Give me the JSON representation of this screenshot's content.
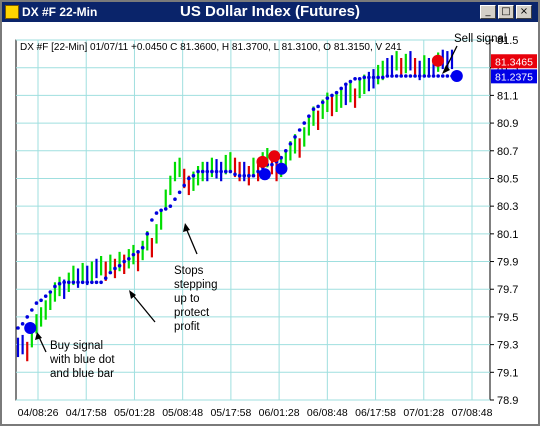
{
  "window": {
    "symbol_title": "DX #F 22-Min",
    "chart_title": "US Dollar Index (Futures)",
    "buttons": {
      "minimize": "_",
      "maximize": "□",
      "close": "×"
    }
  },
  "info_line": "DX #F [22-Min] 01/07/11  +0.0450  C 81.3600,  H 81.3700,  L 81.3100,  O 81.3150,  V 241",
  "price_tags": [
    {
      "label": "81.3465",
      "color": "#e8000b"
    },
    {
      "label": "81.2375",
      "color": "#0000e6"
    }
  ],
  "annotations": {
    "sell": "Sell signal",
    "buy": [
      "Buy signal",
      "with blue dot",
      "and blue bar"
    ],
    "stops": [
      "Stops",
      "stepping",
      "up to",
      "protect",
      "profit"
    ]
  },
  "colors": {
    "up": "#00dd00",
    "down": "#dd0000",
    "neutral": "#0000dd",
    "stop": "#0000dd",
    "grid": "#9fdfdf",
    "sell": "#e8000b",
    "buy": "#0000ee"
  },
  "chart_data": {
    "type": "line",
    "title": "US Dollar Index (Futures)",
    "ylim": [
      78.9,
      81.5
    ],
    "y_ticks": [
      "81.5",
      "81.3",
      "81.1",
      "80.9",
      "80.7",
      "80.5",
      "80.3",
      "80.1",
      "79.9",
      "79.7",
      "79.5",
      "79.3",
      "79.1",
      "78.9"
    ],
    "x_ticks": [
      "04/08:26",
      "04/17:58",
      "05/01:28",
      "05/08:48",
      "05/17:58",
      "06/01:28",
      "06/08:48",
      "06/17:58",
      "07/01:28",
      "07/08:48"
    ],
    "series": [
      {
        "kind": "price_bars",
        "values": [
          79.28,
          79.3,
          79.25,
          79.35,
          79.45,
          79.5,
          79.55,
          79.62,
          79.68,
          79.72,
          79.7,
          79.75,
          79.8,
          79.78,
          79.82,
          79.8,
          79.83,
          79.85,
          79.87,
          79.83,
          79.88,
          79.85,
          79.9,
          79.88,
          79.92,
          79.95,
          79.9,
          79.98,
          80.05,
          80.0,
          80.1,
          80.2,
          80.35,
          80.45,
          80.55,
          80.58,
          80.5,
          80.45,
          80.48,
          80.52,
          80.55,
          80.55,
          80.58,
          80.57,
          80.55,
          80.6,
          80.62,
          80.58,
          80.55,
          80.55,
          80.52,
          80.58,
          80.55,
          80.62,
          80.65,
          80.6,
          80.55,
          80.58,
          80.62,
          80.7,
          80.75,
          80.72,
          80.8,
          80.88,
          80.95,
          80.92,
          81.0,
          81.05,
          81.02,
          81.05,
          81.08,
          81.1,
          81.12,
          81.08,
          81.15,
          81.18,
          81.2,
          81.22,
          81.25,
          81.28,
          81.3,
          81.32,
          81.35,
          81.3,
          81.33,
          81.35,
          81.3,
          81.28,
          81.32,
          81.3,
          81.3,
          81.34,
          81.36,
          81.35,
          81.36
        ]
      },
      {
        "kind": "trailing_stop",
        "values": [
          79.42,
          79.45,
          79.5,
          79.55,
          79.6,
          79.62,
          79.65,
          79.68,
          79.72,
          79.74,
          79.75,
          79.75,
          79.75,
          79.75,
          79.75,
          79.75,
          79.75,
          79.75,
          79.75,
          79.78,
          79.82,
          79.85,
          79.87,
          79.9,
          79.92,
          79.95,
          79.97,
          80.0,
          80.1,
          80.2,
          80.25,
          80.27,
          80.28,
          80.3,
          80.35,
          80.4,
          80.45,
          80.5,
          80.52,
          80.55,
          80.55,
          80.55,
          80.55,
          80.55,
          80.55,
          80.55,
          80.55,
          80.53,
          80.52,
          80.52,
          80.52,
          80.52,
          80.55,
          80.58,
          80.6,
          80.6,
          80.62,
          80.65,
          80.7,
          80.75,
          80.8,
          80.85,
          80.9,
          80.95,
          81.0,
          81.02,
          81.05,
          81.08,
          81.1,
          81.12,
          81.15,
          81.18,
          81.2,
          81.22,
          81.22,
          81.23,
          81.23,
          81.23,
          81.23,
          81.23,
          81.24,
          81.24,
          81.24,
          81.24,
          81.24,
          81.24,
          81.24,
          81.24,
          81.24,
          81.24,
          81.24,
          81.24,
          81.24,
          81.24,
          81.24
        ]
      }
    ],
    "signals": [
      {
        "type": "buy",
        "x": 0.03,
        "y": 79.42
      },
      {
        "type": "sell",
        "x": 0.89,
        "y": 81.35
      },
      {
        "type": "sell",
        "x": 0.52,
        "y": 80.62
      },
      {
        "type": "sell",
        "x": 0.545,
        "y": 80.66
      },
      {
        "type": "buy",
        "x": 0.525,
        "y": 80.53
      },
      {
        "type": "buy",
        "x": 0.56,
        "y": 80.57
      },
      {
        "type": "buy",
        "x": 0.93,
        "y": 81.24
      }
    ]
  }
}
